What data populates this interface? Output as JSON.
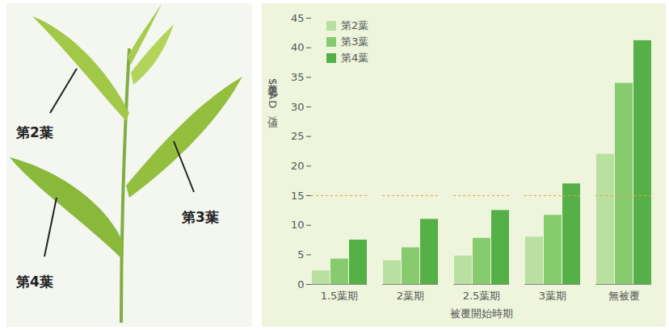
{
  "image": {
    "labels": [
      "第2葉",
      "第3葉",
      "第4葉"
    ]
  },
  "chart_data": {
    "type": "bar",
    "categories": [
      "1.5葉期",
      "2葉期",
      "2.5葉期",
      "3葉期",
      "無被覆"
    ],
    "series": [
      {
        "name": "第2葉",
        "color": "#b9e0a0",
        "values": [
          2.3,
          4.0,
          4.8,
          8.0,
          22.0
        ]
      },
      {
        "name": "第3葉",
        "color": "#86cc6e",
        "values": [
          4.3,
          6.2,
          7.8,
          11.7,
          34.0
        ]
      },
      {
        "name": "第4葉",
        "color": "#55b048",
        "values": [
          7.5,
          11.0,
          12.5,
          17.0,
          41.2
        ]
      }
    ],
    "x_label": "被覆開始時期",
    "y_label": "葉色（SPAD）値",
    "ylim": [
      0,
      45
    ],
    "yticks": [
      0,
      5,
      10,
      15,
      20,
      25,
      30,
      35,
      40,
      45
    ],
    "threshold": 15,
    "legend": "top-left",
    "grid": false
  }
}
